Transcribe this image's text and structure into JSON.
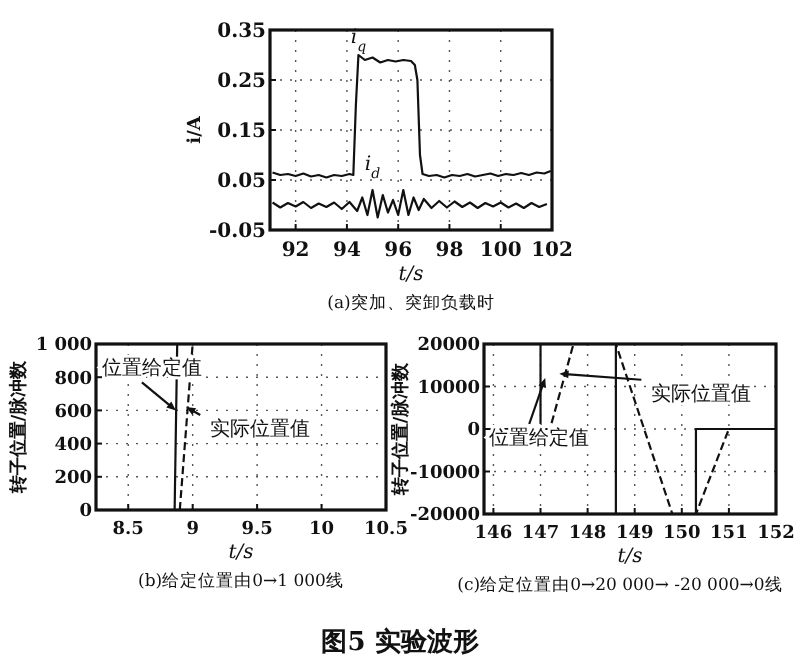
{
  "chart_data": [
    {
      "type": "line",
      "title": "(a)突加、突卸负载时",
      "xlabel": "t/s",
      "ylabel": "i/A",
      "xlim": [
        91,
        102
      ],
      "ylim": [
        -0.05,
        0.35
      ],
      "xticks": [
        92,
        94,
        96,
        98,
        100,
        102
      ],
      "yticks": [
        -0.05,
        0.05,
        0.15,
        0.25,
        0.35
      ],
      "grid": true,
      "series": [
        {
          "name": "i$_{q}$",
          "color": "#111111",
          "x": [
            91.1,
            91.4,
            91.7,
            92,
            92.3,
            92.6,
            92.9,
            93.2,
            93.5,
            93.8,
            94.1,
            94.25,
            94.35,
            94.45,
            94.7,
            95,
            95.3,
            95.6,
            95.9,
            96.2,
            96.5,
            96.65,
            96.75,
            96.85,
            96.95,
            97.2,
            97.5,
            97.8,
            98.1,
            98.4,
            98.7,
            99,
            99.3,
            99.6,
            99.9,
            100.2,
            100.5,
            100.8,
            101.1,
            101.4,
            101.7,
            101.95
          ],
          "values": [
            0.065,
            0.06,
            0.062,
            0.058,
            0.063,
            0.057,
            0.06,
            0.055,
            0.06,
            0.058,
            0.062,
            0.06,
            0.2,
            0.3,
            0.29,
            0.295,
            0.285,
            0.29,
            0.287,
            0.29,
            0.288,
            0.28,
            0.25,
            0.1,
            0.062,
            0.058,
            0.06,
            0.055,
            0.06,
            0.058,
            0.062,
            0.057,
            0.06,
            0.063,
            0.058,
            0.062,
            0.06,
            0.064,
            0.06,
            0.065,
            0.063,
            0.068
          ]
        },
        {
          "name": "i$_{d}$",
          "color": "#111111",
          "x": [
            91.1,
            91.4,
            91.7,
            92,
            92.3,
            92.6,
            92.9,
            93.2,
            93.5,
            93.8,
            94.1,
            94.4,
            94.6,
            94.8,
            95,
            95.2,
            95.4,
            95.6,
            95.8,
            96,
            96.2,
            96.4,
            96.6,
            96.8,
            97,
            97.3,
            97.6,
            97.9,
            98.2,
            98.5,
            98.8,
            99.1,
            99.4,
            99.7,
            100,
            100.3,
            100.6,
            100.9,
            101.2,
            101.5,
            101.8
          ],
          "values": [
            0.005,
            -0.005,
            0.004,
            -0.003,
            0.006,
            -0.006,
            0.003,
            -0.004,
            0.005,
            -0.008,
            0.006,
            -0.012,
            0.015,
            -0.02,
            0.03,
            -0.025,
            0.02,
            -0.015,
            0.01,
            -0.02,
            0.03,
            -0.02,
            0.015,
            -0.01,
            0.012,
            -0.006,
            0.008,
            -0.005,
            0.007,
            -0.004,
            0.005,
            -0.006,
            0.004,
            -0.003,
            0.005,
            -0.005,
            0.003,
            -0.006,
            0.004,
            -0.004,
            0.002
          ]
        }
      ]
    },
    {
      "type": "line",
      "title": "(b)给定位置由0→1 000线",
      "xlabel": "t/s",
      "ylabel": "转子位置/脉冲数",
      "xlim": [
        8.25,
        10.5
      ],
      "ylim": [
        0,
        1000
      ],
      "xticks": [
        8.5,
        9,
        9.5,
        10,
        10.5
      ],
      "yticks": [
        0,
        200,
        400,
        600,
        800,
        {
          "value": 1000,
          "label": "1 000"
        }
      ],
      "grid": true,
      "series": [
        {
          "color": "#111111",
          "line_style": "solid",
          "x": [
            8.86,
            8.88
          ],
          "values": [
            0,
            1000
          ]
        },
        {
          "color": "#111111",
          "line_style": "dashed",
          "x": [
            8.9,
            9.0
          ],
          "values": [
            0,
            1000
          ]
        }
      ],
      "annotations": [
        {
          "text": "位置给定值",
          "x": 8.87,
          "y": 600
        },
        {
          "text": "实际位置值",
          "x": 8.95,
          "y": 620
        }
      ]
    },
    {
      "type": "line",
      "title": "(c)给定位置由0→20 000→ -20 000→0线",
      "xlabel": "t/s",
      "ylabel": "转子位置/脉冲数",
      "xlim": [
        145.8,
        152
      ],
      "ylim": [
        -20000,
        20000
      ],
      "xticks": [
        146,
        147,
        148,
        149,
        150,
        151,
        152
      ],
      "yticks": [
        -20000,
        -10000,
        0,
        10000,
        20000
      ],
      "grid": true,
      "series": [
        {
          "color": "#111111",
          "line_style": "solid",
          "x": [
            145.8,
            147.0,
            147.0,
            148.6,
            148.6,
            150.3,
            150.3,
            152
          ],
          "values": [
            0,
            0,
            20000,
            20000,
            -20000,
            -20000,
            0,
            0
          ]
        },
        {
          "color": "#111111",
          "line_style": "dashed",
          "x": [
            145.8,
            147.2,
            147.7,
            148.6,
            149.8,
            150.3,
            151.0,
            152
          ],
          "values": [
            0,
            0,
            20000,
            20000,
            -20000,
            -20000,
            0,
            0
          ]
        }
      ],
      "annotations": [
        {
          "text": "实际位置值",
          "x": 147.4,
          "y": 13000
        },
        {
          "text": "位置给定值",
          "x": 147.1,
          "y": 12000
        }
      ]
    },
    {
      "type": "other",
      "title": "图5 实验波形"
    }
  ]
}
